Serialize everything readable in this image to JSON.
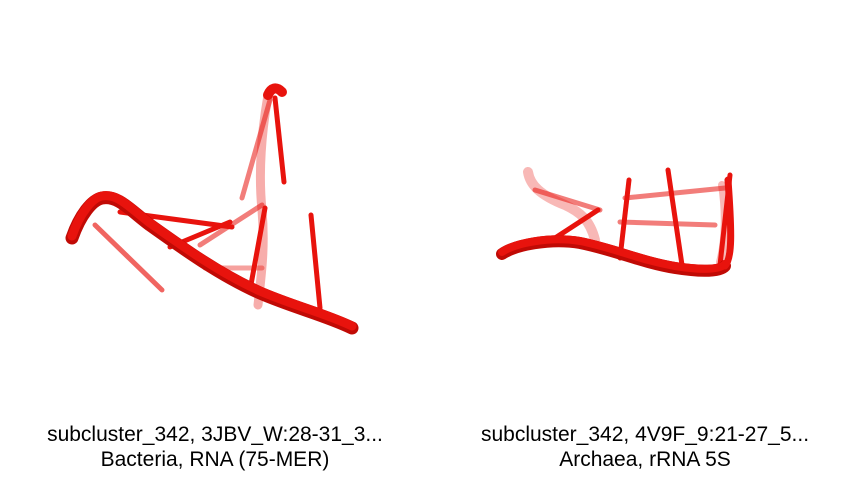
{
  "colors": {
    "background": "#ffffff",
    "rna": "#e8130d",
    "rna_shadow": "#a80000"
  },
  "panels": [
    {
      "render_icon": "rna-backbone-3d-render",
      "caption": {
        "line1": "subcluster_342, 3JBV_W:28-31_3...",
        "line2": "Bacteria, RNA (75-MER)"
      }
    },
    {
      "render_icon": "rna-backbone-3d-render",
      "caption": {
        "line1": "subcluster_342, 4V9F_9:21-27_5...",
        "line2": "Archaea, rRNA 5S"
      }
    }
  ]
}
